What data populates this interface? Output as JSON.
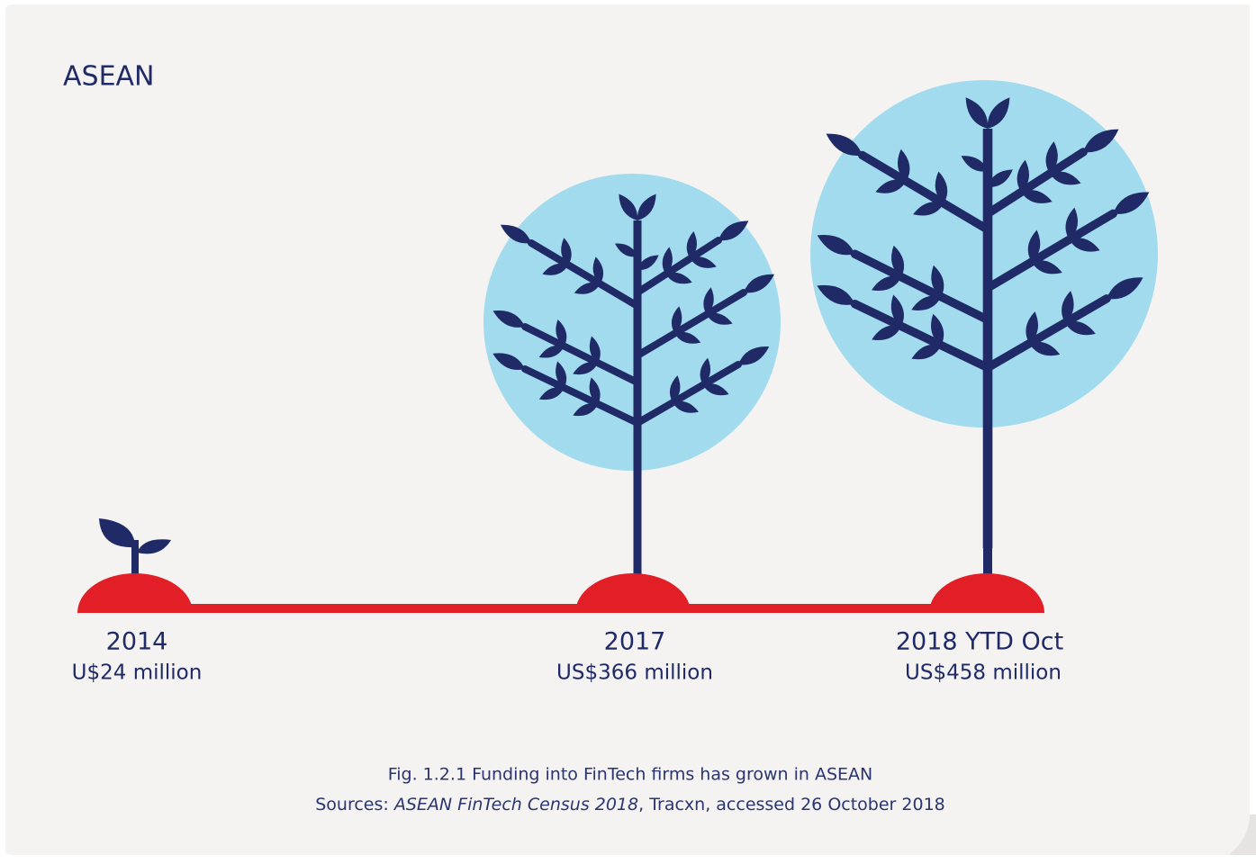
{
  "title": "ASEAN",
  "milestones": [
    {
      "year": "2014",
      "amount": "U$24 million"
    },
    {
      "year": "2017",
      "amount": "US$366 million"
    },
    {
      "year": "2018 YTD Oct",
      "amount": "US$458 million"
    }
  ],
  "caption": {
    "figure": "Fig. 1.2.1 Funding into FinTech firms has grown in ASEAN",
    "sources_prefix": "Sources:",
    "sources_title": "ASEAN FinTech Census 2018",
    "sources_suffix": ", Tracxn, accessed 26 October 2018"
  }
}
